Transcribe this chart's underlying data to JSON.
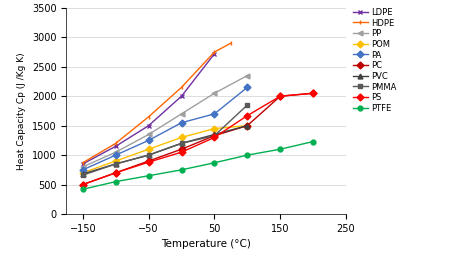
{
  "title": "",
  "xlabel": "Temperature (°C)",
  "ylabel": "Heat Capacity Cp (J /Kg K)",
  "xlim": [
    -175,
    240
  ],
  "ylim": [
    0,
    3500
  ],
  "xticks": [
    -150,
    -50,
    50,
    150,
    250
  ],
  "yticks": [
    0,
    500,
    1000,
    1500,
    2000,
    2500,
    3000,
    3500
  ],
  "figsize": [
    4.74,
    2.61
  ],
  "dpi": 100,
  "series": [
    {
      "label": "LDPE",
      "color": "#7030A0",
      "marker": "x",
      "linestyle": "-",
      "x": [
        -150,
        -100,
        -50,
        0,
        50
      ],
      "y": [
        850,
        1150,
        1500,
        2000,
        2720
      ]
    },
    {
      "label": "HDPE",
      "color": "#FF6600",
      "marker": "|",
      "linestyle": "-",
      "x": [
        -150,
        -100,
        -50,
        0,
        50,
        75
      ],
      "y": [
        870,
        1200,
        1650,
        2150,
        2750,
        2900
      ]
    },
    {
      "label": "PP",
      "color": "#A0A0A0",
      "marker": "<",
      "linestyle": "-",
      "x": [
        -150,
        -100,
        -50,
        0,
        50,
        100
      ],
      "y": [
        800,
        1050,
        1350,
        1700,
        2050,
        2350
      ]
    },
    {
      "label": "POM",
      "color": "#FFC000",
      "marker": "D",
      "linestyle": "-",
      "x": [
        -150,
        -100,
        -50,
        0,
        50,
        100
      ],
      "y": [
        700,
        900,
        1100,
        1300,
        1450,
        1500
      ]
    },
    {
      "label": "PA",
      "color": "#4472C4",
      "marker": "D",
      "linestyle": "-",
      "x": [
        -150,
        -100,
        -50,
        0,
        50,
        100
      ],
      "y": [
        750,
        1000,
        1250,
        1550,
        1700,
        2150
      ]
    },
    {
      "label": "PC",
      "color": "#C00000",
      "marker": "D",
      "linestyle": "-",
      "x": [
        -150,
        -100,
        -50,
        0,
        50,
        100,
        150,
        200
      ],
      "y": [
        500,
        700,
        900,
        1100,
        1330,
        1500,
        2000,
        2050
      ]
    },
    {
      "label": "PVC",
      "color": "#404040",
      "marker": "^",
      "linestyle": "-",
      "x": [
        -150,
        -100,
        -50,
        0,
        50,
        100
      ],
      "y": [
        680,
        850,
        1000,
        1200,
        1350,
        1500
      ]
    },
    {
      "label": "PMMA",
      "color": "#595959",
      "marker": "s",
      "linestyle": "-",
      "x": [
        -150,
        -100,
        -50,
        0,
        50,
        100
      ],
      "y": [
        660,
        850,
        1000,
        1200,
        1330,
        1850
      ]
    },
    {
      "label": "PS",
      "color": "#FF0000",
      "marker": "D",
      "linestyle": "-",
      "x": [
        -150,
        -100,
        -50,
        0,
        50,
        100,
        150,
        200
      ],
      "y": [
        500,
        700,
        880,
        1050,
        1300,
        1670,
        2000,
        2050
      ]
    },
    {
      "label": "PTFE",
      "color": "#00B050",
      "marker": "o",
      "linestyle": "-",
      "x": [
        -150,
        -100,
        -50,
        0,
        50,
        100,
        150,
        200
      ],
      "y": [
        420,
        550,
        650,
        750,
        870,
        1000,
        1100,
        1230
      ]
    }
  ]
}
